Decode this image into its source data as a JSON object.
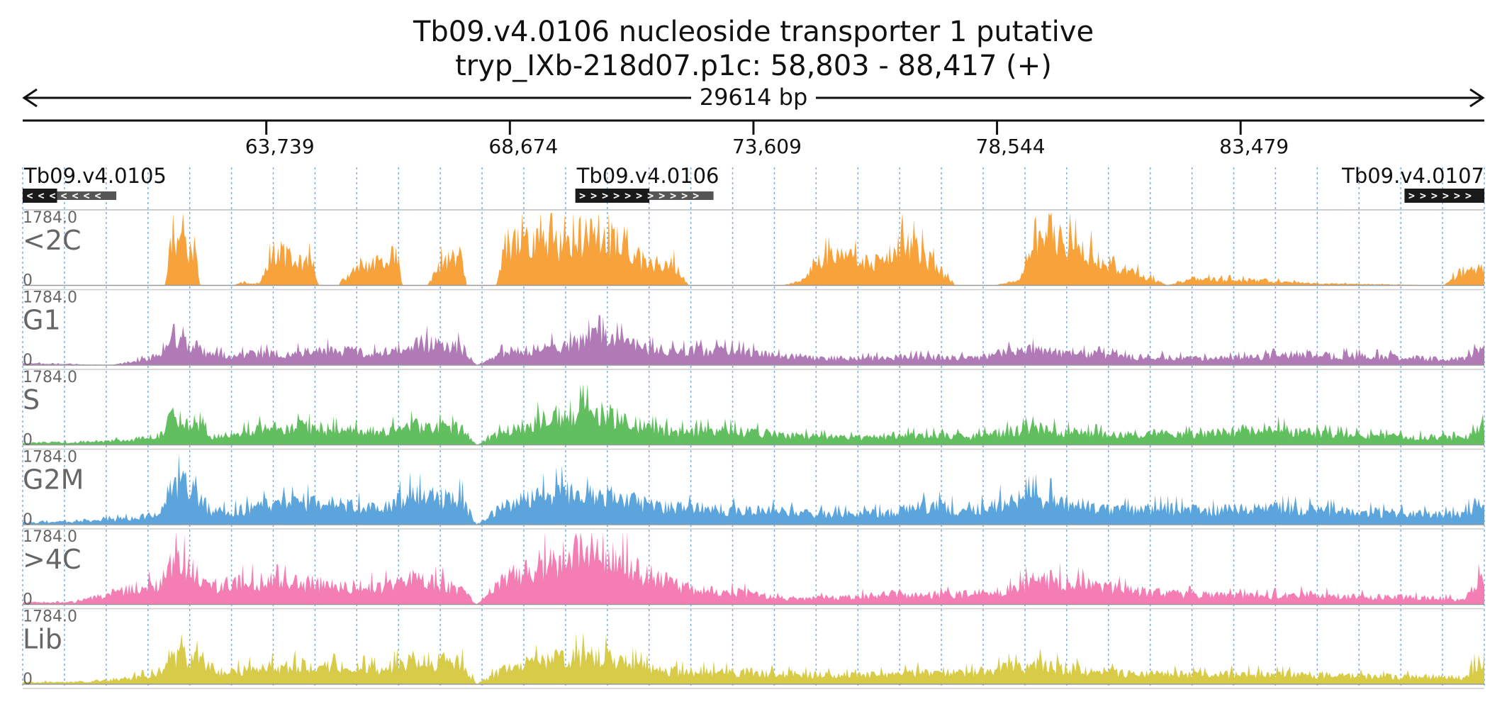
{
  "chart_data": {
    "type": "area",
    "title": "Tb09.v4.0106  nucleoside transporter 1  putative",
    "subtitle": "tryp_IXb-218d07.p1c: 58,803 - 88,417 (+)",
    "span_label": "29614 bp",
    "xlim": [
      58803,
      88417
    ],
    "ylim": [
      0,
      1784.0
    ],
    "ymax_label": "1784.0",
    "ymin_label": "0",
    "ticks": [
      {
        "pos": 63739,
        "label": "63,739"
      },
      {
        "pos": 68674,
        "label": "68,674"
      },
      {
        "pos": 73609,
        "label": "73,609"
      },
      {
        "pos": 78544,
        "label": "78,544"
      },
      {
        "pos": 83479,
        "label": "83,479"
      }
    ],
    "grid": true,
    "genes": [
      {
        "name": "Tb09.v4.0105",
        "start": 58803,
        "end": 60700,
        "cds_end": 59500,
        "strand": "-",
        "label_align": "start"
      },
      {
        "name": "Tb09.v4.0106",
        "start": 70000,
        "end": 72800,
        "cds_end": 71500,
        "strand": "+",
        "label_align": "start"
      },
      {
        "name": "Tb09.v4.0107",
        "start": 86800,
        "end": 88417,
        "cds_end": 88417,
        "strand": "+",
        "label_align": "end"
      }
    ],
    "series": [
      {
        "name": "<2C",
        "color": "#f8a23c",
        "x": [
          58803,
          61700,
          61800,
          62300,
          62400,
          63100,
          63150,
          63600,
          63900,
          64700,
          64800,
          65200,
          65600,
          66400,
          66500,
          67000,
          67300,
          67700,
          67800,
          68400,
          68600,
          69900,
          70000,
          70800,
          71000,
          71500,
          72000,
          72300,
          74200,
          74600,
          74900,
          75500,
          76000,
          76400,
          76600,
          77000,
          77700,
          78500,
          79000,
          79500,
          80200,
          82000,
          82500,
          84000,
          84500,
          85000,
          87600,
          88000,
          88417
        ],
        "values": [
          0,
          0,
          1400,
          1100,
          0,
          0,
          80,
          60,
          1000,
          700,
          0,
          0,
          600,
          900,
          0,
          0,
          700,
          900,
          0,
          0,
          1300,
          1200,
          1500,
          1400,
          1000,
          700,
          600,
          0,
          0,
          150,
          800,
          900,
          600,
          1000,
          1300,
          1000,
          0,
          0,
          150,
          1700,
          1100,
          0,
          200,
          150,
          100,
          60,
          0,
          500,
          500
        ]
      },
      {
        "name": "G1",
        "color": "#b07ab7",
        "x": [
          58803,
          60600,
          61200,
          61600,
          61800,
          62300,
          62600,
          63100,
          63600,
          64500,
          65000,
          66100,
          66700,
          67700,
          68000,
          68600,
          69900,
          70400,
          71000,
          71500,
          72000,
          73000,
          73500,
          74100,
          74600,
          75700,
          76400,
          77200,
          78000,
          78800,
          79400,
          80300,
          81100,
          81900,
          82700,
          83900,
          84800,
          85800,
          86700,
          87400,
          88000,
          88417
        ],
        "values": [
          60,
          0,
          160,
          300,
          700,
          600,
          320,
          300,
          350,
          380,
          450,
          360,
          700,
          550,
          0,
          400,
          600,
          850,
          700,
          500,
          420,
          450,
          400,
          280,
          260,
          200,
          250,
          250,
          220,
          400,
          470,
          350,
          260,
          250,
          200,
          250,
          350,
          280,
          250,
          200,
          200,
          520
        ]
      },
      {
        "name": "S",
        "color": "#61bf5f",
        "x": [
          58803,
          60100,
          61000,
          61600,
          61800,
          62300,
          62600,
          63100,
          63600,
          64500,
          65000,
          66100,
          66700,
          67700,
          68000,
          68600,
          69700,
          70400,
          71000,
          71500,
          72000,
          73000,
          73500,
          74100,
          74600,
          75700,
          76400,
          77200,
          78000,
          78800,
          79400,
          80300,
          81100,
          81900,
          82700,
          83900,
          84800,
          85800,
          86700,
          87400,
          88000,
          88417
        ],
        "values": [
          60,
          100,
          150,
          300,
          850,
          700,
          250,
          320,
          500,
          550,
          480,
          400,
          600,
          500,
          0,
          450,
          950,
          1050,
          750,
          520,
          420,
          450,
          400,
          330,
          280,
          220,
          300,
          300,
          260,
          420,
          500,
          360,
          330,
          360,
          300,
          550,
          380,
          300,
          250,
          250,
          200,
          550
        ]
      },
      {
        "name": "G2M",
        "color": "#5ba4dc",
        "x": [
          58803,
          60100,
          61000,
          61600,
          61800,
          62300,
          62600,
          63100,
          63600,
          64500,
          65000,
          66100,
          66700,
          67700,
          68000,
          68600,
          69700,
          70400,
          71000,
          71500,
          72000,
          73000,
          73500,
          74100,
          74600,
          75700,
          76400,
          77200,
          78000,
          78800,
          79400,
          80300,
          81100,
          81900,
          82700,
          83900,
          84800,
          85800,
          86700,
          87400,
          88000,
          88417
        ],
        "values": [
          60,
          100,
          200,
          400,
          1250,
          1100,
          400,
          420,
          550,
          700,
          620,
          500,
          900,
          800,
          0,
          600,
          1000,
          1050,
          800,
          620,
          520,
          480,
          450,
          420,
          350,
          320,
          380,
          600,
          400,
          750,
          850,
          600,
          450,
          500,
          420,
          520,
          460,
          400,
          350,
          320,
          300,
          850
        ]
      },
      {
        "name": ">4C",
        "color": "#f47db3",
        "x": [
          58803,
          59900,
          61000,
          61600,
          61800,
          62300,
          62600,
          63100,
          63600,
          64500,
          65000,
          66100,
          66700,
          67700,
          68000,
          68600,
          69900,
          70400,
          71000,
          71500,
          72000,
          72800,
          73500,
          74100,
          74600,
          75700,
          76400,
          77200,
          78000,
          78800,
          79400,
          80300,
          81100,
          81900,
          82700,
          83900,
          84800,
          85800,
          86700,
          87400,
          88000,
          88417
        ],
        "values": [
          60,
          80,
          500,
          600,
          1300,
          1100,
          550,
          650,
          700,
          650,
          600,
          550,
          800,
          500,
          0,
          900,
          1500,
          1750,
          1300,
          900,
          600,
          400,
          350,
          200,
          180,
          250,
          350,
          300,
          320,
          450,
          800,
          600,
          450,
          350,
          300,
          250,
          320,
          250,
          230,
          200,
          150,
          900
        ]
      },
      {
        "name": "Lib",
        "color": "#d7cb47",
        "x": [
          58803,
          60100,
          61000,
          61600,
          61800,
          62300,
          62600,
          63100,
          63600,
          64500,
          65000,
          66100,
          66700,
          67700,
          68000,
          68600,
          69700,
          70400,
          71000,
          71500,
          72000,
          73000,
          73500,
          74100,
          74600,
          75700,
          76400,
          77200,
          78000,
          78800,
          79400,
          80300,
          81100,
          81900,
          82700,
          83900,
          84800,
          85800,
          86700,
          87400,
          88000,
          88417
        ],
        "values": [
          60,
          80,
          200,
          300,
          900,
          800,
          350,
          400,
          500,
          600,
          520,
          450,
          750,
          650,
          0,
          500,
          800,
          900,
          650,
          500,
          400,
          380,
          360,
          330,
          300,
          260,
          300,
          400,
          340,
          520,
          600,
          430,
          330,
          340,
          290,
          330,
          290,
          260,
          230,
          230,
          210,
          800
        ]
      }
    ]
  }
}
